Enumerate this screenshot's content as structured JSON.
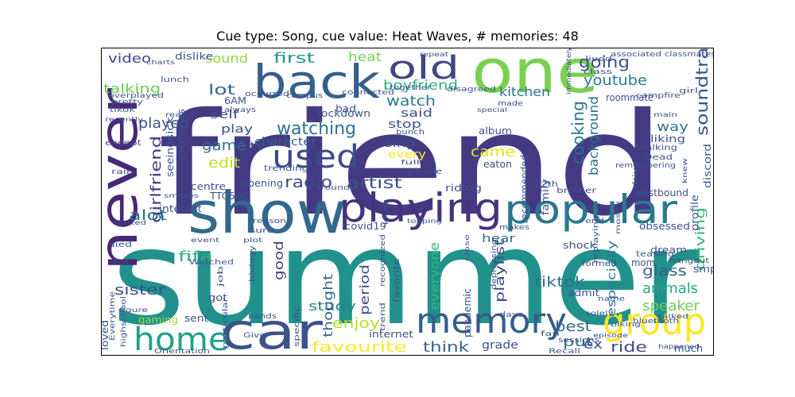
{
  "figure": {
    "title": "Cue type: Song, cue value: Heat Waves, # memories: 48"
  },
  "chart_data": {
    "type": "wordcloud",
    "title": "Cue type: Song, cue value: Heat Waves, # memories: 48",
    "words": [
      {
        "text": "friend",
        "weight": 1.0,
        "color": "#443a83"
      },
      {
        "text": "summer",
        "weight": 0.98,
        "color": "#21918c"
      },
      {
        "text": "one",
        "weight": 0.62,
        "color": "#7ad151"
      },
      {
        "text": "show",
        "weight": 0.58,
        "color": "#31688e"
      },
      {
        "text": "never",
        "weight": 0.55,
        "color": "#482878"
      },
      {
        "text": "back",
        "weight": 0.5,
        "color": "#35608d"
      },
      {
        "text": "playing",
        "weight": 0.46,
        "color": "#46327e"
      },
      {
        "text": "popular",
        "weight": 0.46,
        "color": "#2a788e"
      },
      {
        "text": "car",
        "weight": 0.45,
        "color": "#3b528b"
      },
      {
        "text": "memory",
        "weight": 0.36,
        "color": "#365c8d"
      },
      {
        "text": "group",
        "weight": 0.33,
        "color": "#fde725"
      },
      {
        "text": "old",
        "weight": 0.32,
        "color": "#414487"
      },
      {
        "text": "home",
        "weight": 0.3,
        "color": "#1fa188"
      },
      {
        "text": "used",
        "weight": 0.3,
        "color": "#3e4989"
      },
      {
        "text": "watching",
        "weight": 0.2,
        "color": "#2c728e"
      },
      {
        "text": "radio",
        "weight": 0.18,
        "color": "#3e4a89"
      },
      {
        "text": "soundtrack",
        "weight": 0.18,
        "color": "#3b528b"
      },
      {
        "text": "going",
        "weight": 0.17,
        "color": "#3b528b"
      },
      {
        "text": "youtube",
        "weight": 0.17,
        "color": "#287d8e"
      },
      {
        "text": "watch",
        "weight": 0.17,
        "color": "#2a788e"
      },
      {
        "text": "boyfriend",
        "weight": 0.15,
        "color": "#2ab07f"
      },
      {
        "text": "first",
        "weight": 0.15,
        "color": "#1f968b"
      },
      {
        "text": "artist",
        "weight": 0.15,
        "color": "#3b528b"
      },
      {
        "text": "girlfriend",
        "weight": 0.15,
        "color": "#443a83"
      },
      {
        "text": "edit",
        "weight": 0.15,
        "color": "#bddf26"
      },
      {
        "text": "game",
        "weight": 0.15,
        "color": "#2d708e"
      },
      {
        "text": "came",
        "weight": 0.15,
        "color": "#dde318"
      },
      {
        "text": "cooking",
        "weight": 0.14,
        "color": "#2c728e"
      },
      {
        "text": "played",
        "weight": 0.14,
        "color": "#3b528b"
      },
      {
        "text": "lot",
        "weight": 0.14,
        "color": "#31688e"
      },
      {
        "text": "talking",
        "weight": 0.13,
        "color": "#6ece58"
      },
      {
        "text": "video",
        "weight": 0.13,
        "color": "#3e4989"
      },
      {
        "text": "sound",
        "weight": 0.13,
        "color": "#8fd744"
      },
      {
        "text": "kitchen",
        "weight": 0.13,
        "color": "#2c728e"
      },
      {
        "text": "heat",
        "weight": 0.13,
        "color": "#73d056"
      },
      {
        "text": "background",
        "weight": 0.12,
        "color": "#2c728e"
      },
      {
        "text": "driving",
        "weight": 0.13,
        "color": "#3aba76"
      },
      {
        "text": "tiktok",
        "weight": 0.13,
        "color": "#2c728e"
      },
      {
        "text": "glass",
        "weight": 0.13,
        "color": "#35608d"
      },
      {
        "text": "animals",
        "weight": 0.13,
        "color": "#22a884"
      },
      {
        "text": "speaker",
        "weight": 0.13,
        "color": "#6ece58"
      },
      {
        "text": "ride",
        "weight": 0.13,
        "color": "#3e4a89"
      },
      {
        "text": "best",
        "weight": 0.12,
        "color": "#306a8e"
      },
      {
        "text": "think",
        "weight": 0.12,
        "color": "#34618d"
      },
      {
        "text": "favourite",
        "weight": 0.12,
        "color": "#fde725"
      },
      {
        "text": "enjoy",
        "weight": 0.12,
        "color": "#b5de2b"
      },
      {
        "text": "sister",
        "weight": 0.12,
        "color": "#3b528b"
      },
      {
        "text": "alot",
        "weight": 0.11,
        "color": "#2c728e"
      },
      {
        "text": "fifa",
        "weight": 0.11,
        "color": "#2fb47c"
      },
      {
        "text": "good",
        "weight": 0.11,
        "color": "#433e85"
      },
      {
        "text": "study",
        "weight": 0.11,
        "color": "#26818e"
      },
      {
        "text": "period",
        "weight": 0.11,
        "color": "#3e4a89"
      },
      {
        "text": "thought",
        "weight": 0.1,
        "color": "#31688e"
      },
      {
        "text": "everyone",
        "weight": 0.1,
        "color": "#35b779"
      },
      {
        "text": "playlist",
        "weight": 0.1,
        "color": "#3e4989"
      },
      {
        "text": "put",
        "weight": 0.1,
        "color": "#31688e"
      },
      {
        "text": "ex",
        "weight": 0.1,
        "color": "#3b528b"
      },
      {
        "text": "grade",
        "weight": 0.1,
        "color": "#3b528b"
      },
      {
        "text": "way",
        "weight": 0.1,
        "color": "#2c728e"
      },
      {
        "text": "especially",
        "weight": 0.1,
        "color": "#2a788e"
      },
      {
        "text": "hear",
        "weight": 0.09,
        "color": "#31688e"
      },
      {
        "text": "sing",
        "weight": 0.09,
        "color": "#3b528b"
      },
      {
        "text": "stop",
        "weight": 0.09,
        "color": "#3b528b"
      },
      {
        "text": "said",
        "weight": 0.09,
        "color": "#3b528b"
      },
      {
        "text": "every",
        "weight": 0.09,
        "color": "#fde725"
      },
      {
        "text": "character",
        "weight": 0.09,
        "color": "#35608d"
      },
      {
        "text": "tv",
        "weight": 0.09,
        "color": "#3b528b"
      },
      {
        "text": "play",
        "weight": 0.09,
        "color": "#3b528b"
      },
      {
        "text": "self",
        "weight": 0.09,
        "color": "#3b528b"
      },
      {
        "text": "memories",
        "weight": 0.08,
        "color": "#3b528b"
      },
      {
        "text": "lockdown",
        "weight": 0.08,
        "color": "#3b528b"
      },
      {
        "text": "riding",
        "weight": 0.08,
        "color": "#3b528b"
      },
      {
        "text": "opening",
        "weight": 0.08,
        "color": "#3b528b"
      },
      {
        "text": "sent",
        "weight": 0.08,
        "color": "#3b528b"
      },
      {
        "text": "loved",
        "weight": 0.08,
        "color": "#3b528b"
      },
      {
        "text": "gaming",
        "weight": 0.08,
        "color": "#9fda3a"
      },
      {
        "text": "got",
        "weight": 0.08,
        "color": "#3b528b"
      },
      {
        "text": "admit",
        "weight": 0.08,
        "color": "#3b528b"
      },
      {
        "text": "dream",
        "weight": 0.08,
        "color": "#3b528b"
      },
      {
        "text": "mom",
        "weight": 0.07,
        "color": "#3b528b"
      },
      {
        "text": "obsessed",
        "weight": 0.08,
        "color": "#3b528b"
      },
      {
        "text": "shock",
        "weight": 0.08,
        "color": "#3b528b"
      },
      {
        "text": "liking",
        "weight": 0.08,
        "color": "#3b528b"
      },
      {
        "text": "roommate",
        "weight": 0.08,
        "color": "#3b528b"
      },
      {
        "text": "much",
        "weight": 0.07,
        "color": "#3b528b"
      },
      {
        "text": "internet",
        "weight": 0.07,
        "color": "#3b528b"
      },
      {
        "text": "pandemic",
        "weight": 0.07,
        "color": "#3b528b"
      },
      {
        "text": "family",
        "weight": 0.07,
        "color": "#3b528b"
      },
      {
        "text": "album",
        "weight": 0.07,
        "color": "#3b528b"
      },
      {
        "text": "recommended",
        "weight": 0.07,
        "color": "#3b528b"
      },
      {
        "text": "westbound",
        "weight": 0.07,
        "color": "#3b528b"
      },
      {
        "text": "TTC506",
        "weight": 0.07,
        "color": "#3b528b"
      },
      {
        "text": "centre",
        "weight": 0.07,
        "color": "#3b528b"
      },
      {
        "text": "interest",
        "weight": 0.07,
        "color": "#3b528b"
      },
      {
        "text": "covid19",
        "weight": 0.07,
        "color": "#3b528b"
      },
      {
        "text": "eaton",
        "weight": 0.06,
        "color": "#3b528b"
      },
      {
        "text": "6AM",
        "weight": 0.06,
        "color": "#3b528b"
      },
      {
        "text": "bad",
        "weight": 0.06,
        "color": "#3b528b"
      },
      {
        "text": "dislike",
        "weight": 0.06,
        "color": "#3b528b"
      },
      {
        "text": "seeing",
        "weight": 0.06,
        "color": "#3b528b"
      },
      {
        "text": "sick",
        "weight": 0.06,
        "color": "#3b528b"
      },
      {
        "text": "discord",
        "weight": 0.06,
        "color": "#3b528b"
      },
      {
        "text": "profile",
        "weight": 0.06,
        "color": "#3b528b"
      },
      {
        "text": "teasing",
        "weight": 0.05,
        "color": "#3b528b"
      },
      {
        "text": "formed",
        "weight": 0.05,
        "color": "#3b528b"
      },
      {
        "text": "bluetooth",
        "weight": 0.04,
        "color": "#3b528b"
      },
      {
        "text": "highschool",
        "weight": 0.04,
        "color": "#3b528b"
      },
      {
        "text": "Orientation",
        "weight": 0.04,
        "color": "#3b528b"
      },
      {
        "text": "Recall",
        "weight": 0.04,
        "color": "#3b528b"
      },
      {
        "text": "sessions",
        "weight": 0.04,
        "color": "#3b528b"
      },
      {
        "text": "smp",
        "weight": 0.05,
        "color": "#3b528b"
      },
      {
        "text": "hangout",
        "weight": 0.04,
        "color": "#3b528b"
      },
      {
        "text": "classmates",
        "weight": 0.04,
        "color": "#3b528b"
      },
      {
        "text": "associated",
        "weight": 0.04,
        "color": "#3b528b"
      },
      {
        "text": "lived",
        "weight": 0.04,
        "color": "#3b528b"
      },
      {
        "text": "campfire",
        "weight": 0.04,
        "color": "#3b528b"
      },
      {
        "text": "Walking",
        "weight": 0.04,
        "color": "#3b528b"
      },
      {
        "text": "Dead",
        "weight": 0.04,
        "color": "#3b528b"
      },
      {
        "text": "12th",
        "weight": 0.04,
        "color": "#3b528b"
      },
      {
        "text": "brother",
        "weight": 0.04,
        "color": "#3b528b"
      },
      {
        "text": "people",
        "weight": 0.04,
        "color": "#3b528b"
      },
      {
        "text": "trending",
        "weight": 0.04,
        "color": "#3b528b"
      },
      {
        "text": "lunch",
        "weight": 0.04,
        "color": "#3b528b"
      },
      {
        "text": "overplayed",
        "weight": 0.04,
        "color": "#3b528b"
      },
      {
        "text": "tikok",
        "weight": 0.04,
        "color": "#3b528b"
      },
      {
        "text": "pretty",
        "weight": 0.04,
        "color": "#3b528b"
      },
      {
        "text": "except",
        "weight": 0.04,
        "color": "#3b528b"
      },
      {
        "text": "rain",
        "weight": 0.03,
        "color": "#3b528b"
      },
      {
        "text": "died",
        "weight": 0.04,
        "color": "#3b528b"
      },
      {
        "text": "fol",
        "weight": 0.03,
        "color": "#3b528b"
      },
      {
        "text": "job",
        "weight": 0.04,
        "color": "#3b528b"
      },
      {
        "text": "biology",
        "weight": 0.04,
        "color": "#3b528b"
      },
      {
        "text": "bands",
        "weight": 0.04,
        "color": "#3b528b"
      },
      {
        "text": "Give",
        "weight": 0.04,
        "color": "#3b528b"
      },
      {
        "text": "particular",
        "weight": 0.04,
        "color": "#3b528b"
      },
      {
        "text": "specific",
        "weight": 0.04,
        "color": "#3b528b"
      },
      {
        "text": "trend",
        "weight": 0.04,
        "color": "#3b528b"
      },
      {
        "text": "favorite",
        "weight": 0.05,
        "color": "#3b528b"
      },
      {
        "text": "recognized",
        "weight": 0.04,
        "color": "#3b528b"
      },
      {
        "text": "days",
        "weight": 0.04,
        "color": "#3b528b"
      },
      {
        "text": "name",
        "weight": 0.04,
        "color": "#3b528b"
      },
      {
        "text": "end",
        "weight": 0.04,
        "color": "#3b528b"
      },
      {
        "text": "makes",
        "weight": 0.04,
        "color": "#3b528b"
      },
      {
        "text": "depressing",
        "weight": 0.04,
        "color": "#3b528b"
      },
      {
        "text": "close",
        "weight": 0.04,
        "color": "#3b528b"
      },
      {
        "text": "mostly",
        "weight": 0.04,
        "color": "#3b528b"
      },
      {
        "text": "happened",
        "weight": 0.03,
        "color": "#3b528b"
      },
      {
        "text": "main",
        "weight": 0.03,
        "color": "#3b528b"
      },
      {
        "text": "girl",
        "weight": 0.03,
        "color": "#3b528b"
      },
      {
        "text": "class",
        "weight": 0.04,
        "color": "#3b528b"
      },
      {
        "text": "made",
        "weight": 0.04,
        "color": "#3b528b"
      },
      {
        "text": "connected",
        "weight": 0.04,
        "color": "#3b528b"
      },
      {
        "text": "together",
        "weight": 0.04,
        "color": "#3b528b"
      },
      {
        "text": "disagreed",
        "weight": 0.04,
        "color": "#3b528b"
      },
      {
        "text": "campus",
        "weight": 0.04,
        "color": "#3b528b"
      },
      {
        "text": "always",
        "weight": 0.04,
        "color": "#3b528b"
      },
      {
        "text": "occurred",
        "weight": 0.04,
        "color": "#3b528b"
      },
      {
        "text": "bunch",
        "weight": 0.04,
        "color": "#3b528b"
      },
      {
        "text": "full",
        "weight": 0.03,
        "color": "#3b528b"
      },
      {
        "text": "around",
        "weight": 0.04,
        "color": "#3b528b"
      },
      {
        "text": "know",
        "weight": 0.03,
        "color": "#3b528b"
      },
      {
        "text": "topping",
        "weight": 0.03,
        "color": "#3b528b"
      },
      {
        "text": "reason",
        "weight": 0.04,
        "color": "#3b528b"
      },
      {
        "text": "sure",
        "weight": 0.04,
        "color": "#3b528b"
      },
      {
        "text": "plot",
        "weight": 0.03,
        "color": "#3b528b"
      },
      {
        "text": "Watched",
        "weight": 0.04,
        "color": "#3b528b"
      },
      {
        "text": "smores",
        "weight": 0.04,
        "color": "#3b528b"
      },
      {
        "text": "started",
        "weight": 0.03,
        "color": "#3b528b"
      },
      {
        "text": "event",
        "weight": 0.03,
        "color": "#3b528b"
      },
      {
        "text": "Everytime",
        "weight": 0.04,
        "color": "#3b528b"
      },
      {
        "text": "figure",
        "weight": 0.03,
        "color": "#3b528b"
      },
      {
        "text": "charts",
        "weight": 0.03,
        "color": "#3b528b"
      },
      {
        "text": "repeat",
        "weight": 0.03,
        "color": "#3b528b"
      },
      {
        "text": "immediately",
        "weight": 0.03,
        "color": "#3b528b"
      },
      {
        "text": "special",
        "weight": 0.03,
        "color": "#3b528b"
      },
      {
        "text": "remembering",
        "weight": 0.04,
        "color": "#3b528b"
      },
      {
        "text": "drive",
        "weight": 0.04,
        "color": "#3b528b"
      },
      {
        "text": "replaying",
        "weight": 0.04,
        "color": "#3b528b"
      },
      {
        "text": "fan",
        "weight": 0.04,
        "color": "#3b528b"
      },
      {
        "text": "solely",
        "weight": 0.03,
        "color": "#3b528b"
      },
      {
        "text": "biking",
        "weight": 0.03,
        "color": "#3b528b"
      },
      {
        "text": "episode",
        "weight": 0.03,
        "color": "#3b528b"
      },
      {
        "text": "talked",
        "weight": 0.03,
        "color": "#3b528b"
      },
      {
        "text": "knew",
        "weight": 0.03,
        "color": "#3b528b"
      },
      {
        "text": "really",
        "weight": 0.03,
        "color": "#3b528b"
      },
      {
        "text": "recently",
        "weight": 0.03,
        "color": "#3b528b"
      }
    ]
  }
}
